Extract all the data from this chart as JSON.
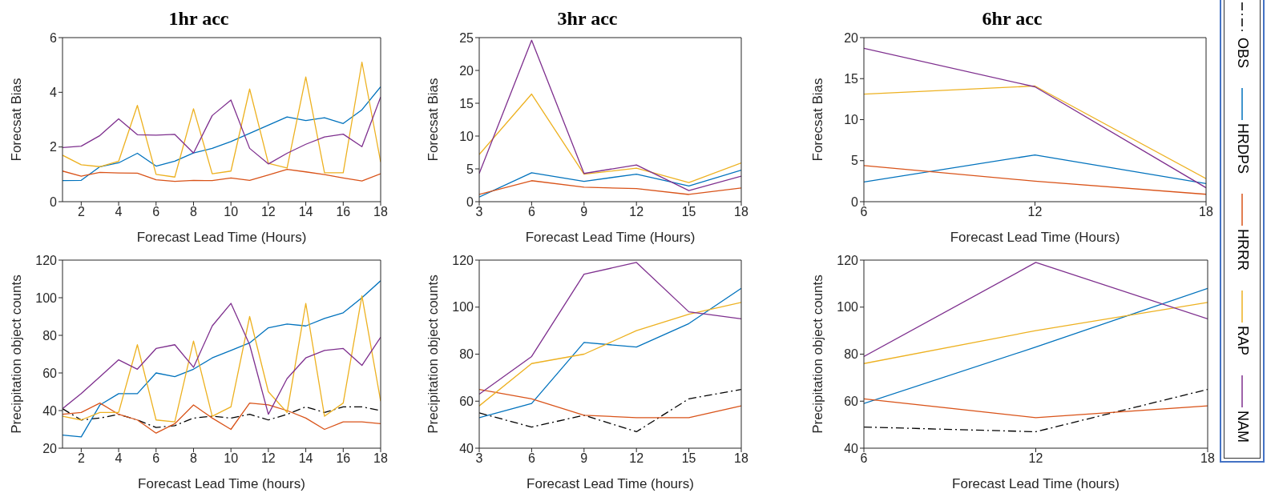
{
  "chart_data": [
    {
      "type": "line",
      "title": "1hr acc",
      "xlabel": "Forecast Lead Time (Hours)",
      "ylabel": "Forecsat Bias",
      "x": [
        1,
        2,
        3,
        4,
        5,
        6,
        7,
        8,
        9,
        10,
        11,
        12,
        13,
        14,
        15,
        16,
        17,
        18
      ],
      "xlim": [
        1,
        18
      ],
      "xticks": [
        2,
        4,
        6,
        8,
        10,
        12,
        14,
        16,
        18
      ],
      "ylim": [
        0,
        6
      ],
      "yticks": [
        0,
        2,
        4,
        6
      ],
      "grid": false,
      "legend": false,
      "series": [
        {
          "color": "#0072bd",
          "values": [
            0.77,
            0.78,
            1.28,
            1.42,
            1.77,
            1.3,
            1.48,
            1.78,
            1.95,
            2.2,
            2.5,
            2.8,
            3.1,
            2.97,
            3.07,
            2.86,
            3.36,
            4.2
          ]
        },
        {
          "color": "#d95319",
          "values": [
            1.12,
            0.93,
            1.07,
            1.05,
            1.04,
            0.8,
            0.74,
            0.78,
            0.77,
            0.87,
            0.78,
            0.98,
            1.18,
            1.09,
            0.99,
            0.87,
            0.76,
            1.02
          ]
        },
        {
          "color": "#edb120",
          "values": [
            1.7,
            1.35,
            1.28,
            1.48,
            3.52,
            1.0,
            0.9,
            3.4,
            1.02,
            1.12,
            4.12,
            1.4,
            1.23,
            4.56,
            1.06,
            1.06,
            5.1,
            1.45
          ]
        },
        {
          "color": "#7e2f8e",
          "values": [
            1.98,
            2.03,
            2.42,
            3.03,
            2.45,
            2.43,
            2.46,
            1.78,
            3.15,
            3.72,
            1.95,
            1.38,
            1.77,
            2.1,
            2.37,
            2.47,
            2.01,
            3.83
          ]
        }
      ]
    },
    {
      "type": "line",
      "title": "3hr acc",
      "xlabel": "Forecast Lead Time (Hours)",
      "ylabel": "Forecsat Bias",
      "x": [
        3,
        6,
        9,
        12,
        15,
        18
      ],
      "xlim": [
        3,
        18
      ],
      "xticks": [
        3,
        6,
        9,
        12,
        15,
        18
      ],
      "ylim": [
        0,
        25
      ],
      "yticks": [
        0,
        5,
        10,
        15,
        20,
        25
      ],
      "grid": false,
      "legend": false,
      "series": [
        {
          "color": "#0072bd",
          "values": [
            0.7,
            4.4,
            3.1,
            4.2,
            2.4,
            4.8
          ]
        },
        {
          "color": "#d95319",
          "values": [
            1.1,
            3.2,
            2.2,
            2.0,
            1.1,
            2.1
          ]
        },
        {
          "color": "#edb120",
          "values": [
            7.2,
            16.4,
            4.2,
            5.1,
            2.9,
            5.9
          ]
        },
        {
          "color": "#7e2f8e",
          "values": [
            4.3,
            24.6,
            4.3,
            5.6,
            1.7,
            3.9
          ]
        }
      ]
    },
    {
      "type": "line",
      "title": "6hr acc",
      "xlabel": "Forecast Lead Time (Hours)",
      "ylabel": "Forecsat Bias",
      "x": [
        6,
        12,
        18
      ],
      "xlim": [
        6,
        18
      ],
      "xticks": [
        6,
        12,
        18
      ],
      "ylim": [
        0,
        20
      ],
      "yticks": [
        0,
        5,
        10,
        15,
        20
      ],
      "grid": false,
      "legend": false,
      "series": [
        {
          "color": "#0072bd",
          "values": [
            2.4,
            5.7,
            2.2
          ]
        },
        {
          "color": "#d95319",
          "values": [
            4.4,
            2.5,
            0.9
          ]
        },
        {
          "color": "#edb120",
          "values": [
            13.1,
            14.1,
            2.8
          ]
        },
        {
          "color": "#7e2f8e",
          "values": [
            18.7,
            14.0,
            1.7
          ]
        }
      ]
    },
    {
      "type": "line",
      "xlabel": "Forecast Lead Time (hours)",
      "ylabel": "Precipitation object counts",
      "x": [
        1,
        2,
        3,
        4,
        5,
        6,
        7,
        8,
        9,
        10,
        11,
        12,
        13,
        14,
        15,
        16,
        17,
        18
      ],
      "xlim": [
        1,
        18
      ],
      "xticks": [
        2,
        4,
        6,
        8,
        10,
        12,
        14,
        16,
        18
      ],
      "ylim": [
        20,
        120
      ],
      "yticks": [
        20,
        40,
        60,
        80,
        100,
        120
      ],
      "grid": false,
      "legend": false,
      "series": [
        {
          "color": "#000000",
          "line_style": "dashed",
          "values": [
            41,
            35,
            36,
            38,
            35,
            31,
            32,
            36,
            37,
            36,
            38,
            35,
            38,
            42,
            39,
            42,
            42,
            40
          ]
        },
        {
          "color": "#0072bd",
          "values": [
            27,
            26,
            43,
            49,
            49,
            60,
            58,
            62,
            68,
            72,
            76,
            84,
            86,
            85,
            89,
            92,
            100,
            109
          ]
        },
        {
          "color": "#d95319",
          "values": [
            38,
            39,
            44,
            38,
            35,
            28,
            33,
            43,
            36,
            30,
            44,
            43,
            40,
            36,
            30,
            34,
            34,
            33
          ]
        },
        {
          "color": "#edb120",
          "values": [
            37,
            35,
            39,
            39,
            75,
            35,
            34,
            77,
            37,
            42,
            90,
            50,
            39,
            97,
            37,
            44,
            101,
            45
          ]
        },
        {
          "color": "#7e2f8e",
          "values": [
            41,
            49,
            58,
            67,
            62,
            73,
            75,
            63,
            85,
            97,
            75,
            38,
            57,
            68,
            72,
            73,
            64,
            79
          ]
        }
      ]
    },
    {
      "type": "line",
      "xlabel": "Forecast Lead Time (hours)",
      "ylabel": "Precipitation object counts",
      "x": [
        3,
        6,
        9,
        12,
        15,
        18
      ],
      "xlim": [
        3,
        18
      ],
      "xticks": [
        3,
        6,
        9,
        12,
        15,
        18
      ],
      "ylim": [
        40,
        120
      ],
      "yticks": [
        40,
        60,
        80,
        100,
        120
      ],
      "grid": false,
      "legend": false,
      "series": [
        {
          "color": "#000000",
          "line_style": "dashed",
          "values": [
            55,
            49,
            54,
            47,
            61,
            65
          ]
        },
        {
          "color": "#0072bd",
          "values": [
            53,
            59,
            85,
            83,
            93,
            108
          ]
        },
        {
          "color": "#d95319",
          "values": [
            65,
            61,
            54,
            53,
            53,
            58
          ]
        },
        {
          "color": "#edb120",
          "values": [
            58,
            76,
            80,
            90,
            97,
            102
          ]
        },
        {
          "color": "#7e2f8e",
          "values": [
            63,
            79,
            114,
            119,
            98,
            95
          ]
        }
      ]
    },
    {
      "type": "line",
      "xlabel": "Forecast Lead Time (hours)",
      "ylabel": "Precipitation object counts",
      "x": [
        6,
        12,
        18
      ],
      "xlim": [
        6,
        18
      ],
      "xticks": [
        6,
        12,
        18
      ],
      "ylim": [
        40,
        120
      ],
      "yticks": [
        40,
        60,
        80,
        100,
        120
      ],
      "grid": false,
      "legend": "right",
      "series": [
        {
          "name": "OBS",
          "color": "#000000",
          "line_style": "dashed",
          "values": [
            49,
            47,
            65
          ]
        },
        {
          "name": "HRDPS",
          "color": "#0072bd",
          "values": [
            59,
            83,
            108
          ]
        },
        {
          "name": "HRRR",
          "color": "#d95319",
          "values": [
            61,
            53,
            58
          ]
        },
        {
          "name": "RAP",
          "color": "#edb120",
          "values": [
            76,
            90,
            102
          ]
        },
        {
          "name": "NAM",
          "color": "#7e2f8e",
          "values": [
            79,
            119,
            95
          ]
        }
      ]
    }
  ]
}
